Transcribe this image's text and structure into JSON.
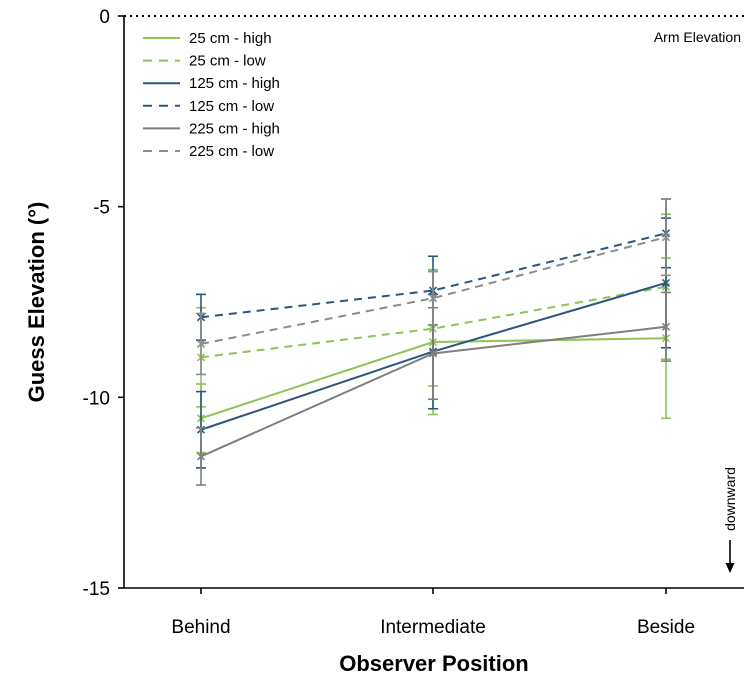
{
  "chart_data": {
    "type": "line",
    "xlabel": "Observer Position",
    "ylabel": "Guess Elevation (°)",
    "categories": [
      "Behind",
      "Intermediate",
      "Beside"
    ],
    "ylim": [
      -15,
      0
    ],
    "yticks": [
      0,
      -5,
      -10,
      -15
    ],
    "grid": false,
    "legend_position": "top-left",
    "reference_line": {
      "y": 0,
      "label": "Arm Elevation",
      "style": "dotted"
    },
    "annotation": {
      "text": "downward",
      "direction": "down"
    },
    "series": [
      {
        "name": "25 cm - high",
        "color": "#8dc455",
        "dash": "solid",
        "marker": "x",
        "values": [
          -10.55,
          -8.55,
          -8.45
        ],
        "err": [
          0.9,
          1.9,
          2.1
        ]
      },
      {
        "name": "25 cm - low",
        "color": "#8dc455",
        "dash": "dashed",
        "marker": "x",
        "values": [
          -8.95,
          -8.2,
          -7.1
        ],
        "err": [
          1.3,
          1.5,
          1.9
        ]
      },
      {
        "name": "125 cm - high",
        "color": "#2c5580",
        "dash": "solid",
        "marker": "x",
        "values": [
          -10.85,
          -8.8,
          -7.0
        ],
        "err": [
          1.0,
          1.5,
          1.7
        ]
      },
      {
        "name": "125 cm - low",
        "color": "#2c5580",
        "dash": "dashed",
        "marker": "x",
        "values": [
          -7.9,
          -7.2,
          -5.7
        ],
        "err": [
          0.6,
          0.9,
          0.9
        ]
      },
      {
        "name": "225 cm - high",
        "color": "#7f7f7f",
        "dash": "solid",
        "marker": "x",
        "values": [
          -11.55,
          -8.85,
          -8.15
        ],
        "err": [
          0.75,
          1.2,
          0.9
        ]
      },
      {
        "name": "225 cm - low",
        "color": "#8c8c8c",
        "dash": "dashed",
        "marker": "x",
        "values": [
          -8.6,
          -7.4,
          -5.8
        ],
        "err": [
          0.8,
          0.7,
          1.0
        ]
      }
    ]
  }
}
